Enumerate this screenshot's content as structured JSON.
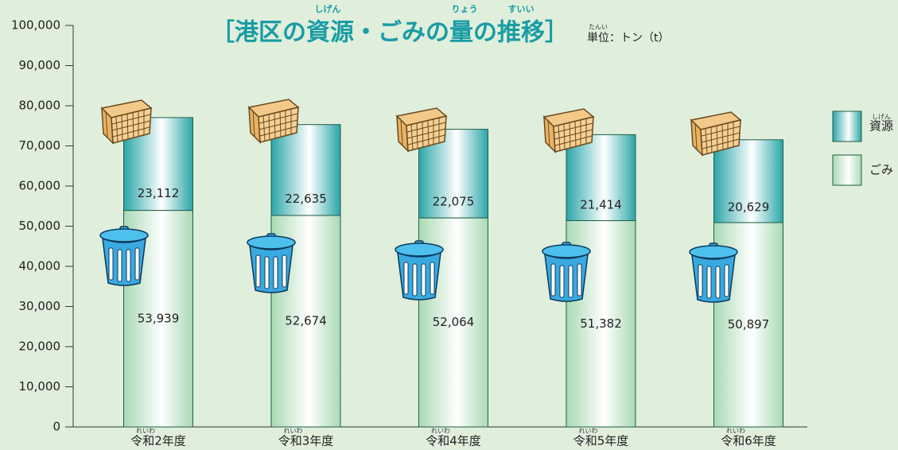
{
  "chart_data": {
    "type": "stacked_bar",
    "title": "［港区の資源・ごみの量の推移］",
    "title_ruby": [
      "しげん",
      "りょう",
      "すいい"
    ],
    "unit_label": "単位：トン（t）",
    "unit_ruby": "たんい",
    "category_ruby": "れいわ",
    "legend_ruby": "しげん",
    "categories": [
      "令和2年度",
      "令和3年度",
      "令和4年度",
      "令和5年度",
      "令和6年度"
    ],
    "series": [
      {
        "name": "ごみ",
        "color": "#a9d9b4",
        "values": [
          53939,
          52674,
          52064,
          51382,
          50897
        ],
        "value_labels": [
          "53,939",
          "52,674",
          "52,064",
          "51,382",
          "50,897"
        ]
      },
      {
        "name": "資源",
        "color": "#2aa5a8",
        "values": [
          23112,
          22635,
          22075,
          21414,
          20629
        ],
        "value_labels": [
          "23,112",
          "22,635",
          "22,075",
          "21,414",
          "20,629"
        ]
      }
    ],
    "ylim": [
      0,
      100000
    ],
    "yticks": [
      0,
      {
        "value": 10000,
        "label": "10,000"
      },
      {
        "value": 20000,
        "label": "20,000"
      },
      {
        "value": 30000,
        "label": "30,000"
      },
      {
        "value": 40000,
        "label": "40,000"
      },
      {
        "value": 50000,
        "label": "50,000"
      },
      {
        "value": 60000,
        "label": "60,000"
      },
      {
        "value": 70000,
        "label": "70,000"
      },
      {
        "value": 80000,
        "label": "80,000"
      },
      {
        "value": 90000,
        "label": "90,000"
      },
      {
        "value": 100000,
        "label": "100,000"
      }
    ]
  }
}
